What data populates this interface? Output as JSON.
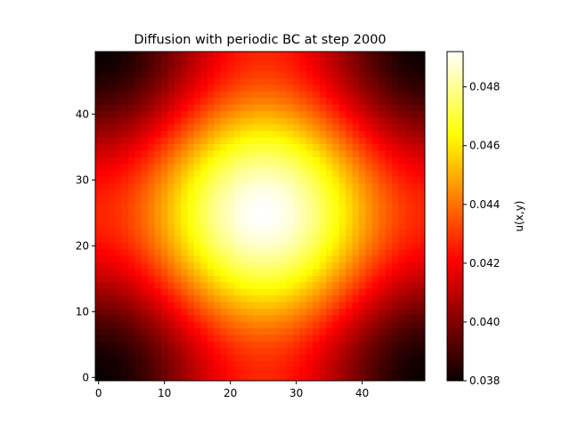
{
  "chart_data": {
    "type": "heatmap",
    "title": "Diffusion with periodic BC at step 2000",
    "xlabel": "",
    "ylabel": "",
    "grid_size": [
      50,
      50
    ],
    "xlim": [
      -0.5,
      49.5
    ],
    "ylim": [
      -0.5,
      49.5
    ],
    "x_ticks": [
      0,
      10,
      20,
      30,
      40
    ],
    "y_ticks": [
      0,
      10,
      20,
      30,
      40
    ],
    "field": {
      "description": "smooth periodic bump centered near (25,25), peak ~0.0492 at center, minimum ~0.0380 at corners",
      "center": [
        25,
        25
      ],
      "min": 0.038,
      "max": 0.0492
    },
    "colormap": "hot",
    "colorbar": {
      "label": "u(x,y)",
      "range": [
        0.038,
        0.0492
      ],
      "ticks": [
        "0.038",
        "0.040",
        "0.042",
        "0.044",
        "0.046",
        "0.048"
      ],
      "tick_values": [
        0.038,
        0.04,
        0.042,
        0.044,
        0.046,
        0.048
      ]
    }
  }
}
